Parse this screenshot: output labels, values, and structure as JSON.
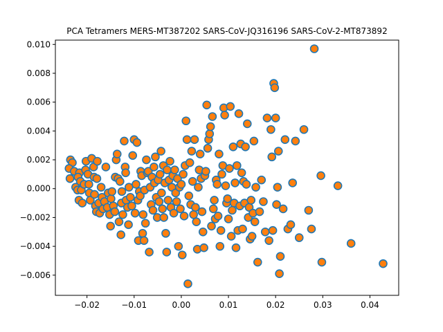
{
  "chart_data": {
    "type": "scatter",
    "title": "PCA Tetramers MERS-MT387202 SARS-CoV-JQ316196 SARS-CoV-2-MT873892",
    "xlabel": "",
    "ylabel": "",
    "xlim": [
      -0.0267,
      0.0461
    ],
    "ylim": [
      -0.0074,
      0.0103
    ],
    "x_ticks": [
      -0.02,
      -0.01,
      0.0,
      0.01,
      0.02,
      0.03,
      0.04
    ],
    "x_tick_labels": [
      "−0.02",
      "−0.01",
      "0.00",
      "0.01",
      "0.02",
      "0.03",
      "0.04"
    ],
    "y_ticks": [
      -0.006,
      -0.004,
      -0.002,
      0.0,
      0.002,
      0.004,
      0.006,
      0.008,
      0.01
    ],
    "y_tick_labels": [
      "−0.006",
      "−0.004",
      "−0.002",
      "0.000",
      "0.002",
      "0.004",
      "0.006",
      "0.008",
      "0.010"
    ],
    "grid": false,
    "colors": {
      "edge": "#1f77b4",
      "fill": "#ff7f0e"
    },
    "series": [
      {
        "points": [
          [
            -0.0235,
            0.002
          ],
          [
            -0.0231,
            0.0018
          ],
          [
            -0.0238,
            0.0014
          ],
          [
            -0.0236,
            0.0007
          ],
          [
            -0.0227,
            0.0012
          ],
          [
            -0.0224,
            0.0001
          ],
          [
            -0.022,
            -0.0001
          ],
          [
            -0.0216,
            0.0011
          ],
          [
            -0.0219,
            0.0008
          ],
          [
            -0.0214,
            0.0005
          ],
          [
            -0.0212,
            -0.0001
          ],
          [
            -0.0217,
            -0.0008
          ],
          [
            -0.021,
            -0.001
          ],
          [
            -0.0206,
            0.0003
          ],
          [
            -0.0203,
            0.0013
          ],
          [
            -0.0202,
            0.0019
          ],
          [
            -0.0198,
            0.001
          ],
          [
            -0.0196,
            0.0003
          ],
          [
            -0.0195,
            -0.0003
          ],
          [
            -0.0193,
            -0.0008
          ],
          [
            -0.019,
            0.0021
          ],
          [
            -0.0186,
            0.0015
          ],
          [
            -0.0185,
            0.0008
          ],
          [
            -0.0184,
            -0.0004
          ],
          [
            -0.0182,
            -0.0012
          ],
          [
            -0.018,
            -0.0016
          ],
          [
            -0.0179,
            0.0007
          ],
          [
            -0.0178,
            0.0019
          ],
          [
            -0.0175,
            -0.001
          ],
          [
            -0.0173,
            -0.0017
          ],
          [
            -0.017,
            0.0001
          ],
          [
            -0.0168,
            -0.0006
          ],
          [
            -0.0166,
            -0.0014
          ],
          [
            -0.0163,
            -0.0009
          ],
          [
            -0.016,
            0.0015
          ],
          [
            -0.0157,
            -0.0013
          ],
          [
            -0.0155,
            -0.0003
          ],
          [
            -0.0152,
            -0.0018
          ],
          [
            -0.015,
            -0.0026
          ],
          [
            -0.0149,
            -0.0007
          ],
          [
            -0.0147,
            -0.0002
          ],
          [
            -0.0144,
            -0.0012
          ],
          [
            -0.0141,
            -0.0016
          ],
          [
            -0.014,
            0.0008
          ],
          [
            -0.0138,
            0.002
          ],
          [
            -0.0136,
            0.0024
          ],
          [
            -0.0134,
            0.0007
          ],
          [
            -0.0132,
            -0.0023
          ],
          [
            -0.013,
            0.0005
          ],
          [
            -0.0128,
            -0.0032
          ],
          [
            -0.0127,
            -0.001
          ],
          [
            -0.0126,
            -0.0002
          ],
          [
            -0.0124,
            -0.0018
          ],
          [
            -0.0121,
            0.0033
          ],
          [
            -0.0119,
            0.0015
          ],
          [
            -0.0118,
            0.0011
          ],
          [
            -0.0117,
            -0.0008
          ],
          [
            -0.0114,
            -0.0013
          ],
          [
            -0.0112,
            -0.0025
          ],
          [
            -0.0111,
            0.0001
          ],
          [
            -0.0108,
            -0.0006
          ],
          [
            -0.0105,
            -0.0012
          ],
          [
            -0.0103,
            0.0023
          ],
          [
            -0.01,
            0.0034
          ],
          [
            -0.0098,
            -0.0017
          ],
          [
            -0.0096,
            0.0003
          ],
          [
            -0.0094,
            0.0032
          ],
          [
            -0.0092,
            -0.0008
          ],
          [
            -0.0091,
            -0.0036
          ],
          [
            -0.0089,
            -0.0002
          ],
          [
            -0.0087,
            -0.0005
          ],
          [
            -0.0086,
            0.0012
          ],
          [
            -0.0084,
            0.0009
          ],
          [
            -0.0082,
            -0.0031
          ],
          [
            -0.0081,
            -0.0018
          ],
          [
            -0.0079,
            -0.0036
          ],
          [
            -0.0078,
            -0.0001
          ],
          [
            -0.0076,
            -0.0024
          ],
          [
            -0.0074,
            0.002
          ],
          [
            -0.0072,
            0.0011
          ],
          [
            -0.007,
            0.0012
          ],
          [
            -0.0068,
            -0.0044
          ],
          [
            -0.0066,
            0.0001
          ],
          [
            -0.0064,
            -0.0011
          ],
          [
            -0.0062,
            0.0008
          ],
          [
            -0.006,
            -0.0015
          ],
          [
            -0.0058,
            0.0015
          ],
          [
            -0.0057,
            0.0004
          ],
          [
            -0.0055,
            0.0022
          ],
          [
            -0.0053,
            -0.0006
          ],
          [
            -0.0051,
            -0.002
          ],
          [
            -0.0049,
            0.0006
          ],
          [
            -0.0047,
            -0.0009
          ],
          [
            -0.0045,
            0.001
          ],
          [
            -0.0043,
            0.0026
          ],
          [
            -0.0042,
            -0.0003
          ],
          [
            -0.004,
            -0.0014
          ],
          [
            -0.0038,
            0.0016
          ],
          [
            -0.0037,
            -0.002
          ],
          [
            -0.0035,
            0.0004
          ],
          [
            -0.0033,
            -0.0031
          ],
          [
            -0.0031,
            -0.0044
          ],
          [
            -0.003,
            0.0013
          ],
          [
            -0.0028,
            -0.0008
          ],
          [
            -0.0026,
            0.0006
          ],
          [
            -0.0024,
            0.0019
          ],
          [
            -0.0022,
            -0.0013
          ],
          [
            -0.002,
            0.0001
          ],
          [
            -0.0018,
            0.0009
          ],
          [
            -0.0016,
            -0.0017
          ],
          [
            -0.0014,
            0.0013
          ],
          [
            -0.0012,
            -0.0003
          ],
          [
            -0.001,
            -0.0009
          ],
          [
            -0.0008,
            0.0007
          ],
          [
            -0.0006,
            -0.004
          ],
          [
            -0.0004,
            0.0001
          ],
          [
            -0.0002,
            -0.0014
          ],
          [
            0.0,
            0.0003
          ],
          [
            0.0002,
            -0.0046
          ],
          [
            0.0004,
            0.001
          ],
          [
            0.0006,
            -0.0019
          ],
          [
            0.0008,
            0.0016
          ],
          [
            0.001,
            0.0047
          ],
          [
            0.0012,
            0.0034
          ],
          [
            0.0014,
            -0.0066
          ],
          [
            0.0016,
            -0.0005
          ],
          [
            0.0018,
            0.0018
          ],
          [
            0.002,
            -0.0011
          ],
          [
            0.0022,
            0.0026
          ],
          [
            0.0024,
            0.0005
          ],
          [
            0.0026,
            -0.0018
          ],
          [
            0.0028,
            0.0034
          ],
          [
            0.003,
            -0.0013
          ],
          [
            0.0032,
            -0.0023
          ],
          [
            0.0034,
            -0.0042
          ],
          [
            0.0036,
            0.0001
          ],
          [
            0.0038,
            0.0013
          ],
          [
            0.004,
            0.0024
          ],
          [
            0.0042,
            0.0007
          ],
          [
            0.0044,
            -0.0016
          ],
          [
            0.0046,
            -0.003
          ],
          [
            0.0048,
            -0.0041
          ],
          [
            0.005,
            0.0009
          ],
          [
            0.0052,
            0.0012
          ],
          [
            0.0054,
            0.0058
          ],
          [
            0.0056,
            0.0028
          ],
          [
            0.0058,
            0.0034
          ],
          [
            0.006,
            0.0038
          ],
          [
            0.0062,
            0.0043
          ],
          [
            0.0064,
            -0.0026
          ],
          [
            0.0066,
            0.005
          ],
          [
            0.0068,
            -0.0014
          ],
          [
            0.007,
            -0.0008
          ],
          [
            0.0072,
            -0.0021
          ],
          [
            0.0074,
            0.0006
          ],
          [
            0.0076,
            0.0003
          ],
          [
            0.0078,
            -0.0019
          ],
          [
            0.008,
            0.0024
          ],
          [
            0.0082,
            -0.004
          ],
          [
            0.0084,
            -0.0029
          ],
          [
            0.0086,
            0.001
          ],
          [
            0.0088,
            0.0016
          ],
          [
            0.009,
            0.0056
          ],
          [
            0.0092,
            0.0051
          ],
          [
            0.0094,
            0.0002
          ],
          [
            0.0096,
            -0.001
          ],
          [
            0.0098,
            -0.0007
          ],
          [
            0.01,
            -0.0021
          ],
          [
            0.0102,
            0.0014
          ],
          [
            0.0104,
            0.0057
          ],
          [
            0.0106,
            -0.0033
          ],
          [
            0.0108,
            -0.0015
          ],
          [
            0.011,
            0.0029
          ],
          [
            0.0112,
            -0.001
          ],
          [
            0.0114,
            0.0004
          ],
          [
            0.0116,
            -0.0041
          ],
          [
            0.0118,
            0.0016
          ],
          [
            0.012,
            -0.0029
          ],
          [
            0.0122,
            0.0052
          ],
          [
            0.0124,
            -0.0012
          ],
          [
            0.0126,
            0.0031
          ],
          [
            0.0128,
            0.0011
          ],
          [
            0.013,
            -0.0028
          ],
          [
            0.0132,
            0.0005
          ],
          [
            0.0134,
            -0.001
          ],
          [
            0.0136,
            0.0029
          ],
          [
            0.0138,
            0.0003
          ],
          [
            0.014,
            0.0045
          ],
          [
            0.0142,
            -0.002
          ],
          [
            0.0144,
            -0.0013
          ],
          [
            0.0146,
            -0.0035
          ],
          [
            0.0148,
            -0.0008
          ],
          [
            0.015,
            -0.0033
          ],
          [
            0.0152,
            -0.0017
          ],
          [
            0.0154,
            0.0033
          ],
          [
            0.0156,
            -0.0023
          ],
          [
            0.0158,
            0.0001
          ],
          [
            0.0162,
            -0.0051
          ],
          [
            0.0166,
            -0.0016
          ],
          [
            0.017,
            0.0006
          ],
          [
            0.0174,
            -0.0009
          ],
          [
            0.0178,
            -0.003
          ],
          [
            0.0182,
            0.0049
          ],
          [
            0.0186,
            -0.0036
          ],
          [
            0.019,
            0.0041
          ],
          [
            0.0192,
            0.0022
          ],
          [
            0.0194,
            -0.0029
          ],
          [
            0.0196,
            0.0073
          ],
          [
            0.0198,
            0.007
          ],
          [
            0.02,
            0.0049
          ],
          [
            0.0202,
            -0.0011
          ],
          [
            0.0204,
            0.0001
          ],
          [
            0.0206,
            0.0026
          ],
          [
            0.0208,
            -0.0059
          ],
          [
            0.021,
            -0.0047
          ],
          [
            0.0216,
            -0.0014
          ],
          [
            0.022,
            0.0034
          ],
          [
            0.0226,
            -0.0028
          ],
          [
            0.0232,
            -0.0025
          ],
          [
            0.0236,
            0.0004
          ],
          [
            0.0242,
            0.0033
          ],
          [
            0.025,
            -0.0034
          ],
          [
            0.026,
            0.0041
          ],
          [
            0.027,
            -0.0015
          ],
          [
            0.0276,
            -0.0028
          ],
          [
            0.0282,
            0.0097
          ],
          [
            0.0296,
            0.0009
          ],
          [
            0.0298,
            -0.0051
          ],
          [
            0.0332,
            0.0002
          ],
          [
            0.036,
            -0.0038
          ],
          [
            0.0428,
            -0.0052
          ]
        ]
      }
    ]
  }
}
